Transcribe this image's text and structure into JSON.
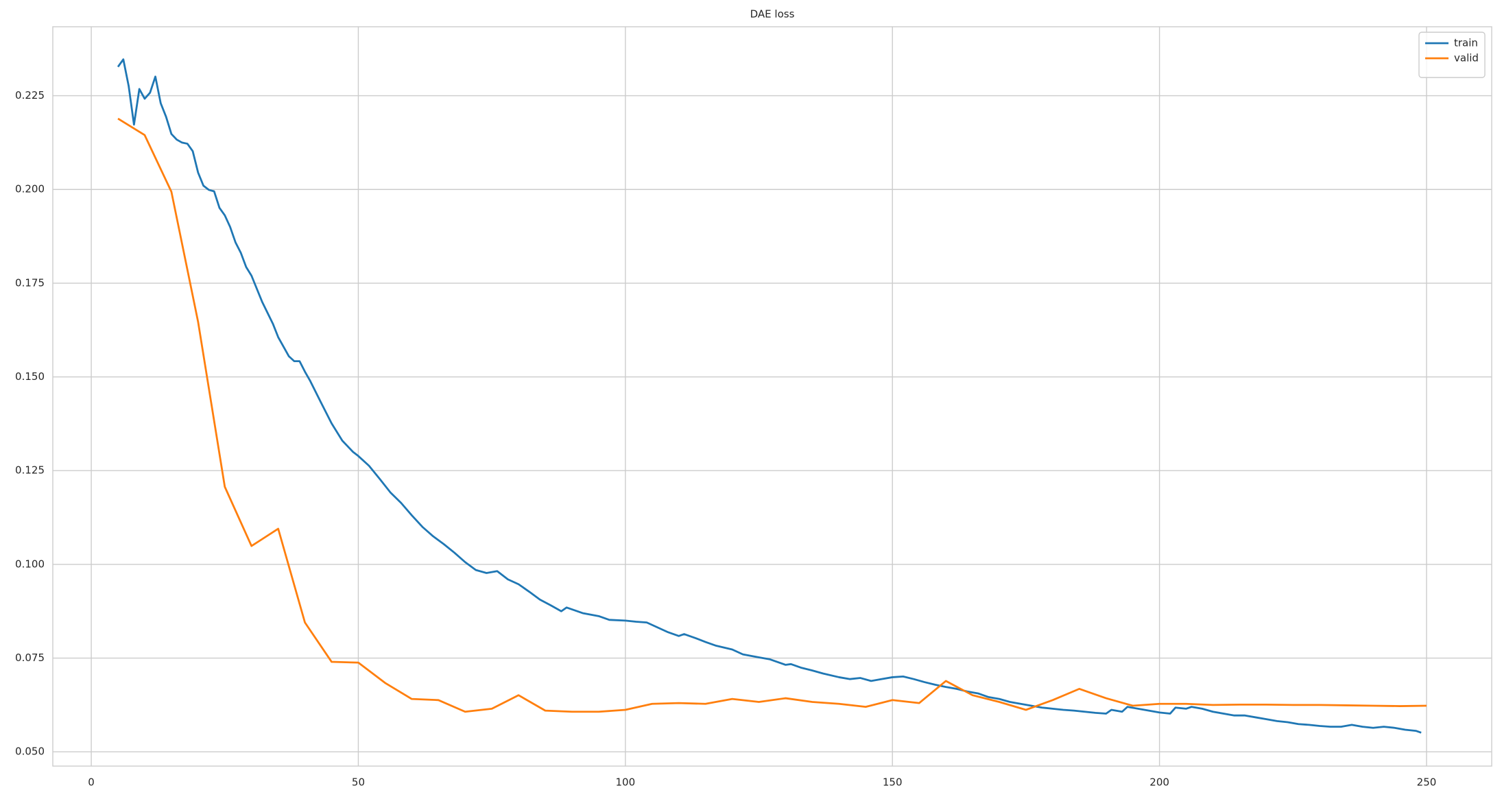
{
  "chart_data": {
    "type": "line",
    "title": "DAE loss",
    "xlim": [
      -7.2,
      262.2
    ],
    "ylim": [
      0.0462,
      0.2434
    ],
    "xticks": [
      0,
      50,
      100,
      150,
      200,
      250
    ],
    "yticks": [
      {
        "value": 0.05,
        "label": "0.050"
      },
      0.075,
      {
        "value": 0.1,
        "label": "0.100"
      },
      0.125,
      {
        "value": 0.15,
        "label": "0.150"
      },
      0.175,
      {
        "value": 0.2,
        "label": "0.200"
      },
      0.225
    ],
    "grid": true,
    "legend": "upper right",
    "series": [
      {
        "name": "train",
        "color": "#1f77b4",
        "x": [
          5,
          6,
          7,
          8,
          9,
          10,
          11,
          12,
          13,
          14,
          15,
          16,
          17,
          18,
          19,
          20,
          21,
          22,
          23,
          24,
          25,
          26,
          27,
          28,
          29,
          30,
          32,
          34,
          35,
          37,
          38,
          39,
          40,
          41,
          43,
          45,
          47,
          48,
          49,
          50,
          52,
          54,
          56,
          58,
          60,
          62,
          64,
          66,
          68,
          70,
          72,
          74,
          76,
          78,
          80,
          82,
          84,
          86,
          88,
          89,
          92,
          95,
          97,
          100,
          102,
          104,
          106,
          108,
          110,
          111,
          113,
          115,
          117,
          120,
          122,
          125,
          127,
          128,
          130,
          131,
          133,
          135,
          137,
          140,
          142,
          144,
          146,
          148,
          150,
          152,
          154,
          156,
          158,
          160,
          162,
          164,
          166,
          168,
          170,
          172,
          174,
          176,
          178,
          180,
          182,
          184,
          186,
          188,
          190,
          191,
          193,
          194,
          196,
          198,
          200,
          202,
          203,
          205,
          206,
          208,
          210,
          212,
          214,
          216,
          218,
          220,
          222,
          224,
          226,
          228,
          230,
          232,
          234,
          236,
          238,
          240,
          242,
          244,
          246,
          248,
          249
        ],
        "values": [
          0.2327,
          0.2347,
          0.2276,
          0.2173,
          0.2268,
          0.2242,
          0.2258,
          0.2301,
          0.223,
          0.2194,
          0.2148,
          0.2133,
          0.2125,
          0.2122,
          0.2102,
          0.2045,
          0.201,
          0.1999,
          0.1995,
          0.1951,
          0.1931,
          0.19,
          0.1859,
          0.1831,
          0.1793,
          0.177,
          0.17,
          0.1642,
          0.1606,
          0.1555,
          0.1542,
          0.1542,
          0.1514,
          0.1489,
          0.1432,
          0.1376,
          0.133,
          0.1315,
          0.13,
          0.1289,
          0.1263,
          0.1228,
          0.1192,
          0.1164,
          0.1131,
          0.11,
          0.1075,
          0.1054,
          0.1031,
          0.1006,
          0.0985,
          0.0977,
          0.0982,
          0.096,
          0.0947,
          0.0927,
          0.0906,
          0.0891,
          0.0875,
          0.0885,
          0.087,
          0.0862,
          0.0852,
          0.085,
          0.0847,
          0.0845,
          0.0832,
          0.0819,
          0.0809,
          0.0814,
          0.0804,
          0.0793,
          0.0783,
          0.0773,
          0.076,
          0.0752,
          0.0747,
          0.0742,
          0.0732,
          0.0734,
          0.0724,
          0.0717,
          0.0709,
          0.0699,
          0.0694,
          0.0697,
          0.0689,
          0.0694,
          0.0699,
          0.0701,
          0.0694,
          0.0686,
          0.0679,
          0.0673,
          0.0668,
          0.0661,
          0.0656,
          0.0646,
          0.0641,
          0.0633,
          0.0628,
          0.0623,
          0.0618,
          0.0615,
          0.0612,
          0.061,
          0.0607,
          0.0604,
          0.0602,
          0.0612,
          0.0607,
          0.062,
          0.0615,
          0.061,
          0.0605,
          0.0602,
          0.0618,
          0.0615,
          0.062,
          0.0615,
          0.0607,
          0.0602,
          0.0597,
          0.0597,
          0.0592,
          0.0587,
          0.0582,
          0.0579,
          0.0574,
          0.0572,
          0.0569,
          0.0567,
          0.0567,
          0.0572,
          0.0567,
          0.0564,
          0.0567,
          0.0564,
          0.0559,
          0.0556,
          0.0551
        ]
      },
      {
        "name": "valid",
        "color": "#ff7f0e",
        "x": [
          5,
          10,
          15,
          20,
          25,
          30,
          35,
          40,
          45,
          50,
          55,
          60,
          65,
          70,
          75,
          80,
          85,
          90,
          95,
          100,
          105,
          110,
          115,
          120,
          125,
          130,
          135,
          140,
          145,
          150,
          155,
          160,
          165,
          170,
          175,
          180,
          185,
          190,
          195,
          200,
          205,
          210,
          215,
          220,
          225,
          230,
          235,
          240,
          245,
          250
        ],
        "values": [
          0.2189,
          0.2145,
          0.1994,
          0.1647,
          0.1207,
          0.1049,
          0.1095,
          0.0845,
          0.074,
          0.0738,
          0.0684,
          0.0641,
          0.0638,
          0.0607,
          0.0615,
          0.0651,
          0.061,
          0.0607,
          0.0607,
          0.0612,
          0.0628,
          0.063,
          0.0628,
          0.0641,
          0.0633,
          0.0643,
          0.0633,
          0.0628,
          0.062,
          0.0638,
          0.063,
          0.0689,
          0.0651,
          0.0633,
          0.0612,
          0.0638,
          0.0668,
          0.0643,
          0.0623,
          0.0628,
          0.0628,
          0.0625,
          0.0626,
          0.0626,
          0.0625,
          0.0625,
          0.0624,
          0.0623,
          0.0622,
          0.0623
        ]
      }
    ]
  }
}
